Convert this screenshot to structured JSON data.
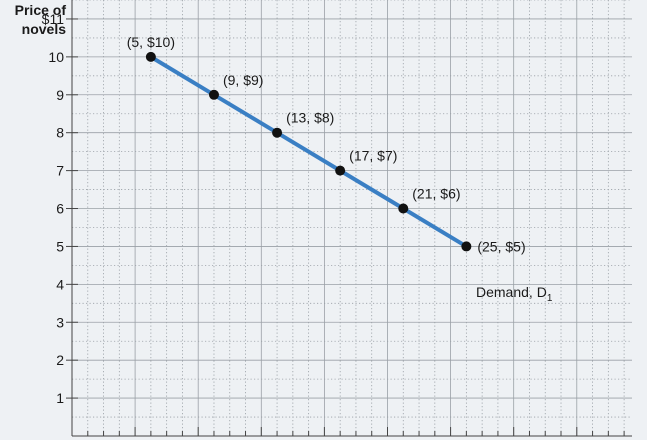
{
  "chart_data": {
    "type": "line",
    "ylabel_lines": [
      "Price of",
      "novels"
    ],
    "xlabel": "",
    "y_tick_labels": [
      "$11",
      "10",
      "9",
      "8",
      "7",
      "6",
      "5",
      "4",
      "3",
      "2",
      "1"
    ],
    "y_tick_values": [
      11,
      10,
      9,
      8,
      7,
      6,
      5,
      4,
      3,
      2,
      1
    ],
    "ylim": [
      0,
      11.5
    ],
    "xlim": [
      0,
      35.5
    ],
    "grid": true,
    "series": [
      {
        "label_text": "Demand, D",
        "label_subscript": "1",
        "color": "#3a7fc4",
        "x": [
          5,
          9,
          13,
          17,
          21,
          25
        ],
        "y": [
          10,
          9,
          8,
          7,
          6,
          5
        ],
        "point_labels": [
          "(5, $10)",
          "(9, $9)",
          "(13, $8)",
          "(17, $7)",
          "(21, $6)",
          "(25, $5)"
        ]
      }
    ]
  }
}
